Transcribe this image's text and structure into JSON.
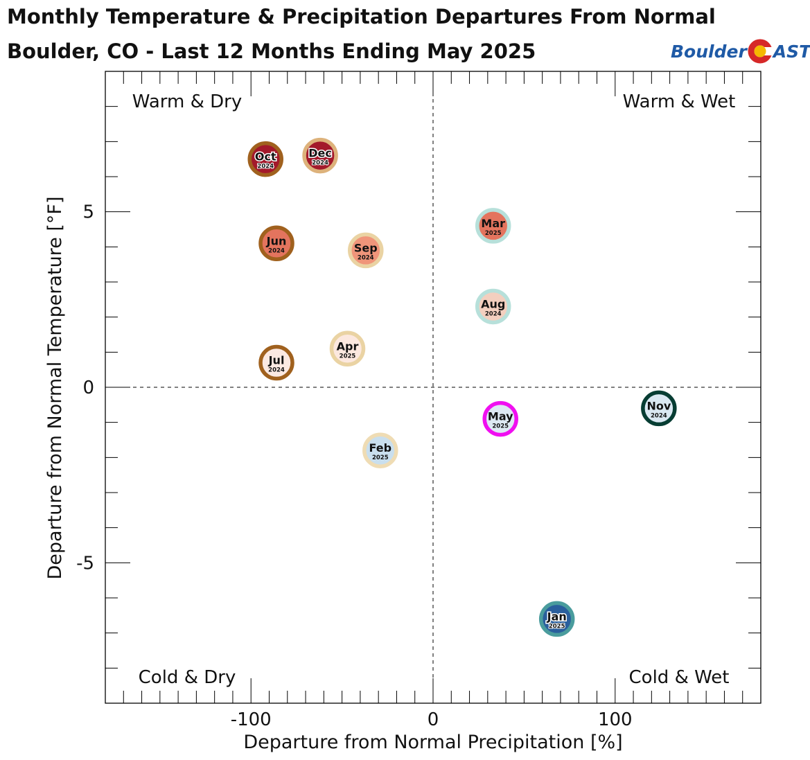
{
  "header": {
    "title_line1": "Monthly Temperature & Precipitation Departures From Normal",
    "title_line2": "Boulder, CO - Last 12 Months Ending May 2025"
  },
  "logo": {
    "part1": "Boulder",
    "part2": "AST",
    "mark": "colorado-flag-c-icon"
  },
  "chart_data": {
    "type": "scatter",
    "xlabel": "Departure from Normal Precipitation [%]",
    "ylabel": "Departure from Normal Temperature [°F]",
    "xlim": [
      -180,
      180
    ],
    "ylim": [
      -9,
      9
    ],
    "xticks": [
      -100,
      0,
      100
    ],
    "xtick_labels": [
      "-100",
      "0",
      "100"
    ],
    "yticks": [
      -5,
      0,
      5
    ],
    "ytick_labels": [
      "-5",
      "0",
      "5"
    ],
    "grid": false,
    "zero_lines": "dashed",
    "quadrant_labels": {
      "top_left": "Warm & Dry",
      "top_right": "Warm & Wet",
      "bottom_left": "Cold & Dry",
      "bottom_right": "Cold & Wet"
    },
    "points": [
      {
        "month": "Oct",
        "year": "2024",
        "x": -92,
        "y": 6.5,
        "fill": "#a3192b",
        "ring": "#a0611e"
      },
      {
        "month": "Dec",
        "year": "2024",
        "x": -62,
        "y": 6.6,
        "fill": "#a3192b",
        "ring": "#ddb27b"
      },
      {
        "month": "Jun",
        "year": "2024",
        "x": -86,
        "y": 4.1,
        "fill": "#e4745e",
        "ring": "#a0611e"
      },
      {
        "month": "Sep",
        "year": "2024",
        "x": -37,
        "y": 3.9,
        "fill": "#f0957a",
        "ring": "#ead3a3"
      },
      {
        "month": "Jul",
        "year": "2024",
        "x": -86,
        "y": 0.7,
        "fill": "#fbe9e2",
        "ring": "#a0611e"
      },
      {
        "month": "Apr",
        "year": "2025",
        "x": -47,
        "y": 1.1,
        "fill": "#fce8df",
        "ring": "#ead3a3"
      },
      {
        "month": "Feb",
        "year": "2025",
        "x": -29,
        "y": -1.8,
        "fill": "#c9dfee",
        "ring": "#efdcb4"
      },
      {
        "month": "Mar",
        "year": "2025",
        "x": 33,
        "y": 4.6,
        "fill": "#e4745e",
        "ring": "#b7e0da"
      },
      {
        "month": "Aug",
        "year": "2024",
        "x": 33,
        "y": 2.3,
        "fill": "#f3cfbf",
        "ring": "#b7e0da"
      },
      {
        "month": "May",
        "year": "2025",
        "x": 37,
        "y": -0.9,
        "fill": "#dde9f3",
        "ring": "#f00ff0"
      },
      {
        "month": "Nov",
        "year": "2024",
        "x": 124,
        "y": -0.6,
        "fill": "#dae8f2",
        "ring": "#073d33"
      },
      {
        "month": "Jan",
        "year": "2025",
        "x": 68,
        "y": -6.6,
        "fill": "#2a5f9d",
        "ring": "#4a9c9d"
      }
    ]
  }
}
